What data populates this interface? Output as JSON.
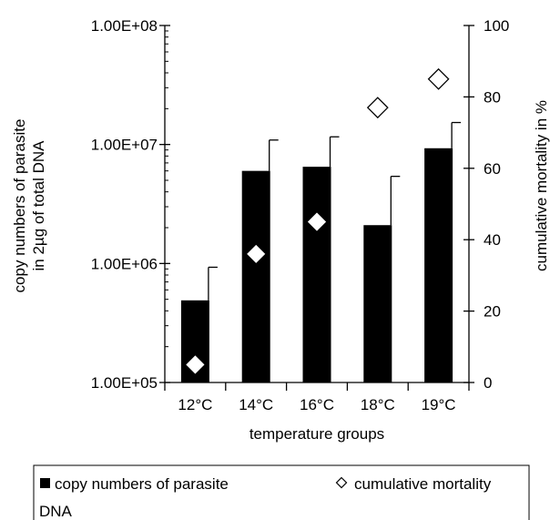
{
  "chart_data": {
    "type": "bar",
    "categories": [
      "12°C",
      "14°C",
      "16°C",
      "18°C",
      "19°C"
    ],
    "series": [
      {
        "name": "copy numbers of parasite DNA",
        "axis": "left",
        "kind": "bar",
        "scale": "log",
        "values": [
          490000,
          6000000,
          6500000,
          2100000,
          9300000
        ],
        "error_upper": [
          930000,
          10900000,
          11600000,
          5400000,
          15300000
        ],
        "color": "#000000"
      },
      {
        "name": "cumulative mortality",
        "axis": "right",
        "kind": "marker",
        "marker": "open-diamond",
        "values": [
          5,
          36,
          45,
          77,
          85
        ]
      }
    ],
    "left_axis": {
      "label_line1": "copy numbers of parasite",
      "label_line2": "in 2µg of total DNA",
      "scale": "log",
      "range": [
        100000,
        100000000
      ],
      "ticks": [
        100000,
        1000000,
        10000000,
        100000000
      ],
      "tick_labels": [
        "1.00E+05",
        "1.00E+06",
        "1.00E+07",
        "1.00E+08"
      ]
    },
    "right_axis": {
      "label": "cumulative mortality in %",
      "range": [
        0,
        100
      ],
      "ticks": [
        0,
        20,
        40,
        60,
        80,
        100
      ],
      "tick_labels": [
        "0",
        "20",
        "40",
        "60",
        "80",
        "100"
      ]
    },
    "xlabel": "temperature groups",
    "grid": false,
    "legend": {
      "placement": "bottom",
      "bar_label_line1": "copy numbers of parasite",
      "bar_label_line2": "DNA",
      "marker_label": "cumulative mortality"
    }
  }
}
